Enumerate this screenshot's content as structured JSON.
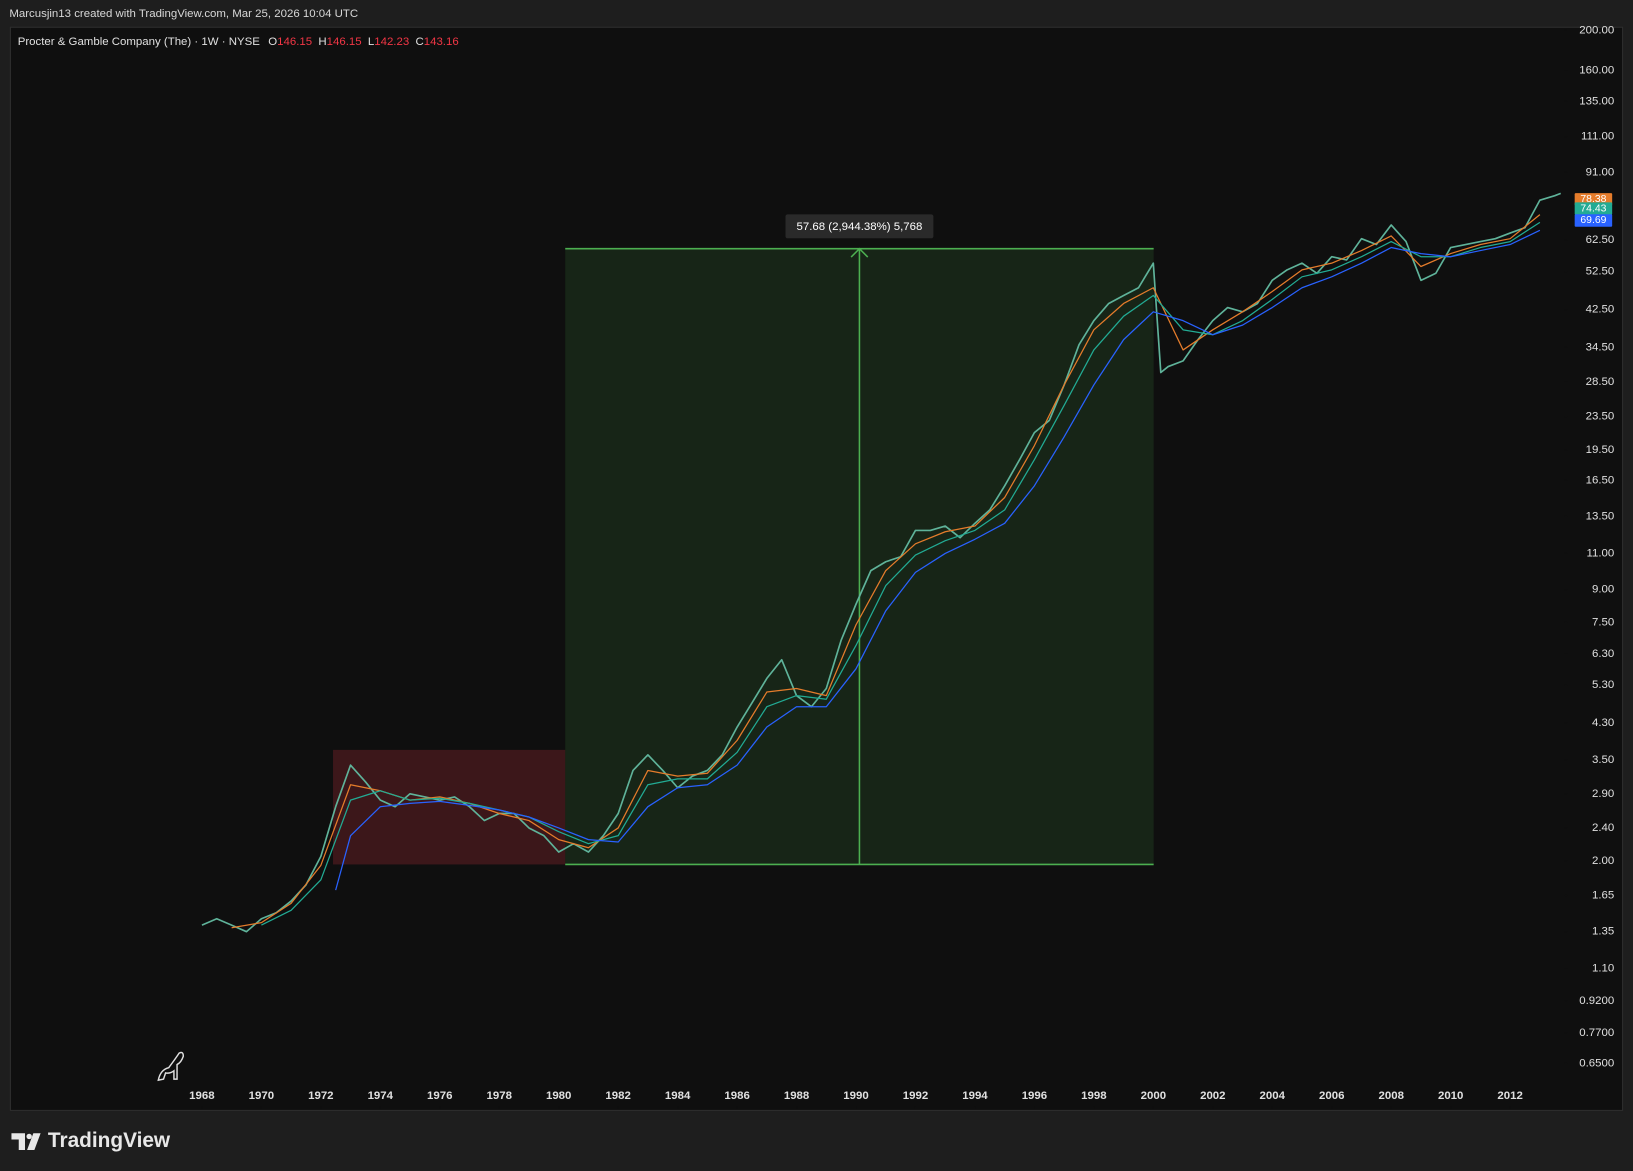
{
  "header": {
    "credit": "Marcusjin13 created with TradingView.com, Mar 25, 2026 10:04 UTC"
  },
  "legend": {
    "symbol": "Procter & Gamble Company (The) · 1W · NYSE",
    "ohlc": [
      {
        "label": "O",
        "value": 146.15
      },
      {
        "label": "H",
        "value": 146.15
      },
      {
        "label": "L",
        "value": 142.23
      },
      {
        "label": "C",
        "value": 143.16
      }
    ]
  },
  "footer": {
    "brand": "TradingView"
  },
  "chart_data": {
    "type": "line",
    "log_scale": true,
    "grid": false,
    "xlim": [
      1961.56,
      2013.75
    ],
    "ylim": [
      0.504,
      203.5
    ],
    "xticks": [
      1968,
      1970,
      1972,
      1974,
      1976,
      1978,
      1980,
      1982,
      1984,
      1986,
      1988,
      1990,
      1992,
      1994,
      1996,
      1998,
      2000,
      2002,
      2004,
      2006,
      2008,
      2010,
      2012
    ],
    "yticks": [
      {
        "value": 200,
        "label": "200.00"
      },
      {
        "value": 160,
        "label": "160.00"
      },
      {
        "value": 135,
        "label": "135.00"
      },
      {
        "value": 111,
        "label": "111.00"
      },
      {
        "value": 91,
        "label": "91.00"
      },
      {
        "value": 62.5,
        "label": "62.50"
      },
      {
        "value": 52.5,
        "label": "52.50"
      },
      {
        "value": 42.5,
        "label": "42.50"
      },
      {
        "value": 34.5,
        "label": "34.50"
      },
      {
        "value": 28.5,
        "label": "28.50"
      },
      {
        "value": 23.5,
        "label": "23.50"
      },
      {
        "value": 19.5,
        "label": "19.50"
      },
      {
        "value": 16.5,
        "label": "16.50"
      },
      {
        "value": 13.5,
        "label": "13.50"
      },
      {
        "value": 11,
        "label": "11.00"
      },
      {
        "value": 9,
        "label": "9.00"
      },
      {
        "value": 7.5,
        "label": "7.50"
      },
      {
        "value": 6.3,
        "label": "6.30"
      },
      {
        "value": 5.3,
        "label": "5.30"
      },
      {
        "value": 4.3,
        "label": "4.30"
      },
      {
        "value": 3.5,
        "label": "3.50"
      },
      {
        "value": 2.9,
        "label": "2.90"
      },
      {
        "value": 2.4,
        "label": "2.40"
      },
      {
        "value": 2,
        "label": "2.00"
      },
      {
        "value": 1.65,
        "label": "1.65"
      },
      {
        "value": 1.35,
        "label": "1.35"
      },
      {
        "value": 1.1,
        "label": "1.10"
      },
      {
        "value": 0.92,
        "label": "0.9200"
      },
      {
        "value": 0.77,
        "label": "0.7700"
      },
      {
        "value": 0.65,
        "label": "0.6500"
      }
    ],
    "series": [
      {
        "color": "#5fb39a",
        "x": [
          1968,
          1968.5,
          1969,
          1969.5,
          1970,
          1970.5,
          1971,
          1971.5,
          1972,
          1972.5,
          1973,
          1973.5,
          1974,
          1974.5,
          1975,
          1975.5,
          1976,
          1976.5,
          1977,
          1977.5,
          1978,
          1978.5,
          1979,
          1979.5,
          1980,
          1980.5,
          1981,
          1981.5,
          1982,
          1982.5,
          1983,
          1983.5,
          1984,
          1984.5,
          1985,
          1985.5,
          1986,
          1986.5,
          1987,
          1987.5,
          1988,
          1988.5,
          1989,
          1989.5,
          1990,
          1990.5,
          1991,
          1991.5,
          1992,
          1992.5,
          1993,
          1993.5,
          1994,
          1994.5,
          1995,
          1995.5,
          1996,
          1996.5,
          1997,
          1997.5,
          1998,
          1998.5,
          1999,
          1999.5,
          2000,
          2000.25,
          2000.5,
          2001,
          2001.5,
          2002,
          2002.5,
          2003,
          2003.5,
          2004,
          2004.5,
          2005,
          2005.5,
          2006,
          2006.5,
          2007,
          2007.5,
          2008,
          2008.5,
          2009,
          2009.5,
          2010,
          2010.5,
          2011,
          2011.5,
          2012,
          2012.5,
          2013,
          2013.5,
          2013.7
        ],
        "values": [
          1.4,
          1.45,
          1.4,
          1.35,
          1.45,
          1.5,
          1.6,
          1.75,
          2.05,
          2.7,
          3.4,
          3.1,
          2.8,
          2.7,
          2.9,
          2.85,
          2.8,
          2.85,
          2.7,
          2.5,
          2.6,
          2.6,
          2.4,
          2.3,
          2.1,
          2.2,
          2.1,
          2.3,
          2.6,
          3.3,
          3.6,
          3.3,
          3.0,
          3.2,
          3.3,
          3.6,
          4.2,
          4.8,
          5.5,
          6.1,
          5.0,
          4.7,
          5.2,
          6.8,
          8.3,
          10.0,
          10.5,
          10.8,
          12.5,
          12.5,
          12.8,
          12.0,
          13.0,
          14.0,
          16.0,
          18.5,
          21.5,
          23.0,
          28.0,
          35.0,
          40.0,
          44.0,
          46.0,
          48.0,
          55.0,
          30,
          31,
          32,
          36,
          40,
          43,
          42,
          44,
          50,
          53,
          55,
          52,
          57,
          56,
          63,
          61,
          68,
          62,
          50,
          52,
          60,
          61,
          62,
          63,
          65,
          67,
          78,
          80,
          81
        ]
      },
      {
        "color": "#e57c2b",
        "x": [
          1969,
          1970,
          1971,
          1972,
          1973,
          1974,
          1975,
          1976,
          1977,
          1978,
          1979,
          1980,
          1981,
          1982,
          1983,
          1984,
          1985,
          1986,
          1987,
          1988,
          1989,
          1990,
          1991,
          1992,
          1993,
          1994,
          1995,
          1996,
          1997,
          1998,
          1999,
          2000,
          2001,
          2002,
          2003,
          2004,
          2005,
          2006,
          2007,
          2008,
          2009,
          2010,
          2011,
          2012,
          2013
        ],
        "values": [
          1.38,
          1.42,
          1.58,
          1.95,
          3.05,
          2.95,
          2.8,
          2.85,
          2.75,
          2.6,
          2.5,
          2.25,
          2.15,
          2.4,
          3.3,
          3.2,
          3.25,
          3.9,
          5.1,
          5.2,
          5.0,
          7.4,
          10.0,
          11.6,
          12.4,
          12.8,
          15.0,
          20.0,
          28.0,
          38.0,
          44.0,
          48.0,
          34.0,
          38.0,
          42.0,
          47.0,
          53.0,
          55.0,
          59.0,
          64.0,
          54.0,
          58.0,
          61.0,
          63.0,
          72.0
        ]
      },
      {
        "color": "#22ab94",
        "x": [
          1970,
          1971,
          1972,
          1973,
          1974,
          1975,
          1976,
          1977,
          1978,
          1979,
          1980,
          1981,
          1982,
          1983,
          1984,
          1985,
          1986,
          1987,
          1988,
          1989,
          1990,
          1991,
          1992,
          1993,
          1994,
          1995,
          1996,
          1997,
          1998,
          1999,
          2000,
          2001,
          2002,
          2003,
          2004,
          2005,
          2006,
          2007,
          2008,
          2009,
          2010,
          2011,
          2012,
          2013
        ],
        "values": [
          1.4,
          1.52,
          1.8,
          2.8,
          2.95,
          2.8,
          2.83,
          2.75,
          2.65,
          2.55,
          2.35,
          2.2,
          2.3,
          3.05,
          3.15,
          3.15,
          3.65,
          4.7,
          5.0,
          4.9,
          6.6,
          9.2,
          10.9,
          11.8,
          12.5,
          14.0,
          18.5,
          25.0,
          34.0,
          41.0,
          46.0,
          38.0,
          37.0,
          40.0,
          45.0,
          51.0,
          53.0,
          57.0,
          62.0,
          57.0,
          57.0,
          60.0,
          62.0,
          69.0
        ]
      },
      {
        "color": "#2962ff",
        "x": [
          1972.5,
          1973,
          1974,
          1975,
          1976,
          1977,
          1978,
          1979,
          1980,
          1981,
          1982,
          1983,
          1984,
          1985,
          1986,
          1987,
          1988,
          1989,
          1990,
          1991,
          1992,
          1993,
          1994,
          1995,
          1996,
          1997,
          1998,
          1999,
          2000,
          2001,
          2002,
          2003,
          2004,
          2005,
          2006,
          2007,
          2008,
          2009,
          2010,
          2011,
          2012,
          2013
        ],
        "values": [
          1.7,
          2.3,
          2.7,
          2.75,
          2.78,
          2.72,
          2.65,
          2.55,
          2.4,
          2.25,
          2.22,
          2.7,
          3.0,
          3.05,
          3.4,
          4.2,
          4.7,
          4.7,
          5.8,
          8.0,
          9.9,
          11.0,
          11.9,
          13.0,
          16.0,
          21.0,
          28.0,
          36.0,
          42.0,
          40.0,
          37.0,
          39.0,
          43.0,
          48.0,
          51.0,
          55.0,
          60.0,
          58.0,
          57.0,
          59.0,
          61.0,
          66.0
        ]
      }
    ],
    "price_labels": [
      {
        "value": 78.38,
        "color": "#e57c2b"
      },
      {
        "value": 74.43,
        "color": "#22ab94"
      },
      {
        "value": 69.69,
        "color": "#2962ff"
      }
    ],
    "range_box": {
      "x": [
        1972.41,
        1980.22
      ],
      "y": [
        1.96,
        3.7
      ],
      "color": "#f23645"
    },
    "measure": {
      "x": [
        1980.22,
        2000.01
      ],
      "y": [
        1.96,
        59.6
      ],
      "color": "#4caf50",
      "label": "57.68 (2,944.38%) 5,768"
    }
  }
}
